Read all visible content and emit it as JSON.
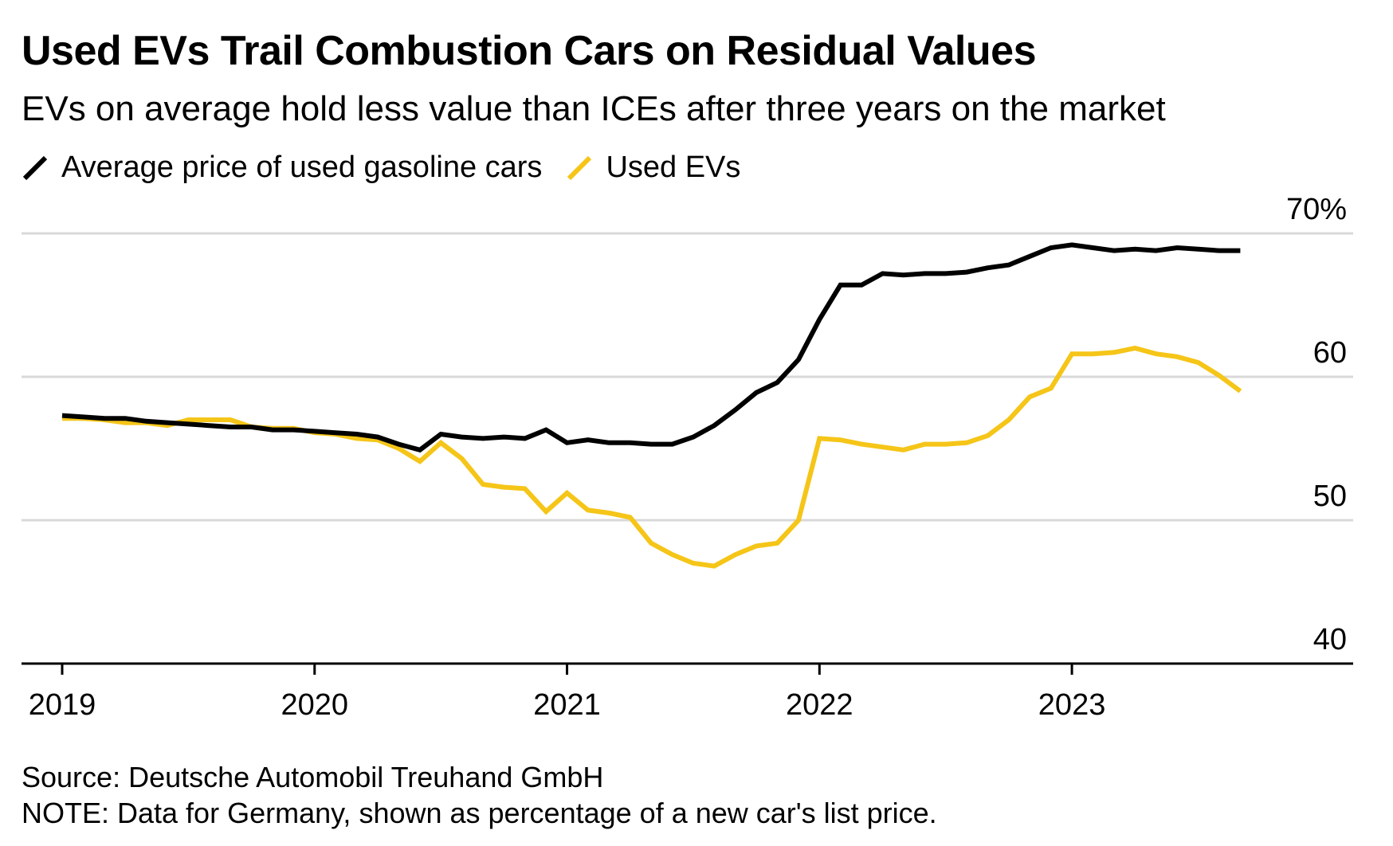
{
  "chart_data": {
    "type": "line",
    "title": "Used EVs Trail Combustion Cars on Residual Values",
    "subtitle": "EVs on average hold less value than ICEs after three years on the market",
    "xlabel": "",
    "ylabel": "",
    "xlim": [
      2019,
      2023.95
    ],
    "ylim": [
      40,
      70
    ],
    "y_ticks": [
      {
        "value": 70,
        "label": "70%"
      },
      {
        "value": 60,
        "label": "60"
      },
      {
        "value": 50,
        "label": "50"
      },
      {
        "value": 40,
        "label": "40"
      }
    ],
    "x_ticks": [
      {
        "value": 2019,
        "label": "2019"
      },
      {
        "value": 2020,
        "label": "2020"
      },
      {
        "value": 2021,
        "label": "2021"
      },
      {
        "value": 2022,
        "label": "2022"
      },
      {
        "value": 2023,
        "label": "2023"
      }
    ],
    "grid": true,
    "legend_position": "top-left",
    "x": [
      2019.0,
      2019.083,
      2019.167,
      2019.25,
      2019.333,
      2019.417,
      2019.5,
      2019.583,
      2019.667,
      2019.75,
      2019.833,
      2019.917,
      2020.0,
      2020.083,
      2020.167,
      2020.25,
      2020.333,
      2020.417,
      2020.5,
      2020.583,
      2020.667,
      2020.75,
      2020.833,
      2020.917,
      2021.0,
      2021.083,
      2021.167,
      2021.25,
      2021.333,
      2021.417,
      2021.5,
      2021.583,
      2021.667,
      2021.75,
      2021.833,
      2021.917,
      2022.0,
      2022.083,
      2022.167,
      2022.25,
      2022.333,
      2022.417,
      2022.5,
      2022.583,
      2022.667,
      2022.75,
      2022.833,
      2022.917,
      2023.0,
      2023.083,
      2023.167,
      2023.25,
      2023.333,
      2023.417,
      2023.5,
      2023.583,
      2023.667
    ],
    "series": [
      {
        "name": "Average price of used gasoline cars",
        "color": "#000000",
        "values": [
          57.3,
          57.2,
          57.1,
          57.1,
          56.9,
          56.8,
          56.7,
          56.6,
          56.5,
          56.5,
          56.3,
          56.3,
          56.2,
          56.1,
          56.0,
          55.8,
          55.3,
          54.9,
          56.0,
          55.8,
          55.7,
          55.8,
          55.7,
          56.3,
          55.4,
          55.6,
          55.4,
          55.4,
          55.3,
          55.3,
          55.8,
          56.6,
          57.7,
          58.9,
          59.6,
          61.2,
          64.0,
          66.4,
          66.4,
          67.2,
          67.1,
          67.2,
          67.2,
          67.3,
          67.6,
          67.8,
          68.4,
          69.0,
          69.2,
          69.0,
          68.8,
          68.9,
          68.8,
          69.0,
          68.9,
          68.8,
          68.8
        ]
      },
      {
        "name": "Used EVs",
        "color": "#F5C518",
        "values": [
          57.1,
          57.1,
          57.0,
          56.8,
          56.8,
          56.6,
          57.0,
          57.0,
          57.0,
          56.5,
          56.4,
          56.4,
          56.1,
          56.0,
          55.7,
          55.6,
          55.0,
          54.1,
          55.4,
          54.3,
          52.5,
          52.3,
          52.2,
          50.6,
          51.9,
          50.7,
          50.5,
          50.2,
          48.4,
          47.6,
          47.0,
          46.8,
          47.6,
          48.2,
          48.4,
          50.0,
          55.7,
          55.6,
          55.3,
          55.1,
          54.9,
          55.3,
          55.3,
          55.4,
          55.9,
          57.0,
          58.6,
          59.2,
          61.6,
          61.6,
          61.7,
          62.0,
          61.6,
          61.4,
          61.0,
          60.1,
          59.0
        ]
      }
    ]
  },
  "footer": {
    "source": "Source: Deutsche Automobil Treuhand GmbH",
    "note": "NOTE: Data for Germany, shown as percentage of a new car's list price."
  }
}
